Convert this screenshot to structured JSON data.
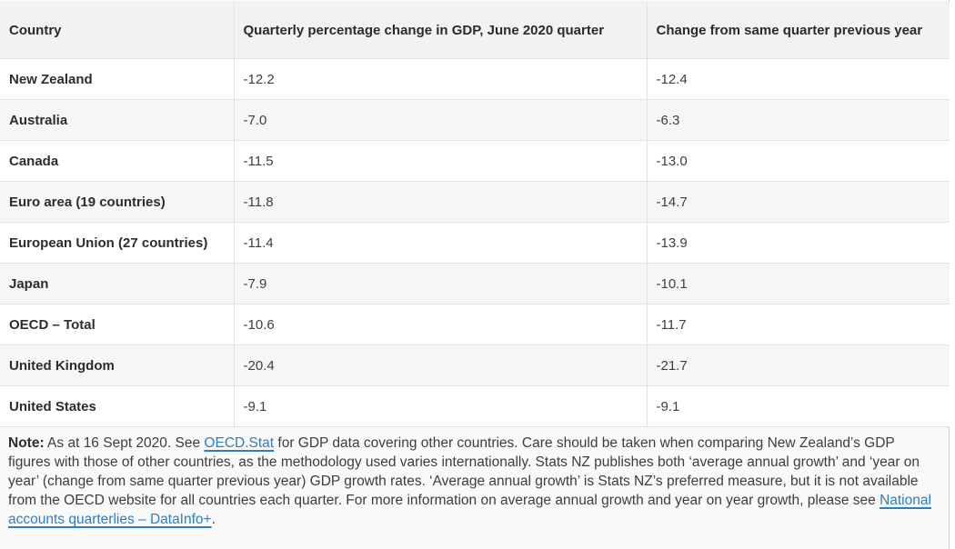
{
  "table": {
    "headers": [
      "Country",
      "Quarterly percentage change in GDP, June 2020 quarter",
      "Change from same quarter previous year"
    ],
    "rows": [
      {
        "country": "New Zealand",
        "quarterly_change": "-12.2",
        "annual_change": "-12.4"
      },
      {
        "country": "Australia",
        "quarterly_change": "-7.0",
        "annual_change": "-6.3"
      },
      {
        "country": "Canada",
        "quarterly_change": "-11.5",
        "annual_change": "-13.0"
      },
      {
        "country": "Euro area (19 countries)",
        "quarterly_change": "-11.8",
        "annual_change": "-14.7"
      },
      {
        "country": "European Union (27 countries)",
        "quarterly_change": "-11.4",
        "annual_change": "-13.9"
      },
      {
        "country": "Japan",
        "quarterly_change": "-7.9",
        "annual_change": "-10.1"
      },
      {
        "country": "OECD – Total",
        "quarterly_change": "-10.6",
        "annual_change": "-11.7"
      },
      {
        "country": "United Kingdom",
        "quarterly_change": "-20.4",
        "annual_change": "-21.7"
      },
      {
        "country": "United States",
        "quarterly_change": "-9.1",
        "annual_change": "-9.1"
      }
    ]
  },
  "note": {
    "label": "Note:",
    "text_1": " As at 16 Sept 2020. See ",
    "link_1": "OECD.Stat",
    "text_2": " for GDP data covering other countries. Care should be taken when comparing New Zealand’s GDP figures with those of other countries, as the methodology used varies internationally. Stats NZ publishes both ‘average annual growth’ and ‘year on year’ (change from same quarter previous year) GDP growth rates. ‘Average annual growth’ is Stats NZ’s preferred measure, but it is not available from the OECD website for all countries each quarter. For more information on average annual growth and year on year growth, please see ",
    "link_2": "National accounts quarterlies – DataInfo+",
    "text_3": "."
  },
  "colors": {
    "link_blue": "#2f7dc0",
    "header_bg": "#f2f2f3",
    "stripe_bg": "#f6f6f7",
    "border": "#e2e2e4"
  }
}
